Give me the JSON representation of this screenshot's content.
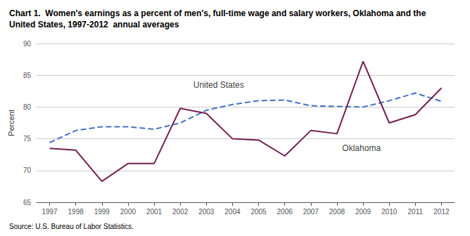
{
  "chart_data": {
    "type": "line",
    "title": "Chart 1.  Women's earnings as a percent of men's, full-time wage and salary workers, Oklahoma and the\nUnited States, 1997-2012  annual averages",
    "ylabel": "Percent",
    "source": "Source: U.S. Bureau of Labor Statistics.",
    "x": [
      1997,
      1998,
      1999,
      2000,
      2001,
      2002,
      2003,
      2004,
      2005,
      2006,
      2007,
      2008,
      2009,
      2010,
      2011,
      2012
    ],
    "series": [
      {
        "name": "United States",
        "color": "#4472C4",
        "line_style": "dashed",
        "values": [
          74.4,
          76.3,
          76.9,
          76.9,
          76.5,
          77.5,
          79.5,
          80.4,
          81.0,
          81.1,
          80.2,
          80.1,
          80.0,
          81.0,
          82.2,
          80.9
        ]
      },
      {
        "name": "Oklahoma",
        "color": "#722050",
        "line_style": "solid",
        "values": [
          73.5,
          73.2,
          68.3,
          71.1,
          71.1,
          79.8,
          79.0,
          75.0,
          74.8,
          72.3,
          76.3,
          75.8,
          87.2,
          77.5,
          78.8,
          83.0
        ]
      }
    ],
    "annotations": [
      {
        "text": "United States",
        "x": 2002.5,
        "y": 83.5
      },
      {
        "text": "Oklahoma",
        "x": 2008.2,
        "y": 73.5
      }
    ],
    "xlim": [
      1996.5,
      2012.5
    ],
    "xticks": [
      1997,
      1998,
      1999,
      2000,
      2001,
      2002,
      2003,
      2004,
      2005,
      2006,
      2007,
      2008,
      2009,
      2010,
      2011,
      2012
    ],
    "ylim": [
      65,
      90
    ],
    "yticks": [
      65,
      70,
      75,
      80,
      85,
      90
    ],
    "grid": true
  }
}
